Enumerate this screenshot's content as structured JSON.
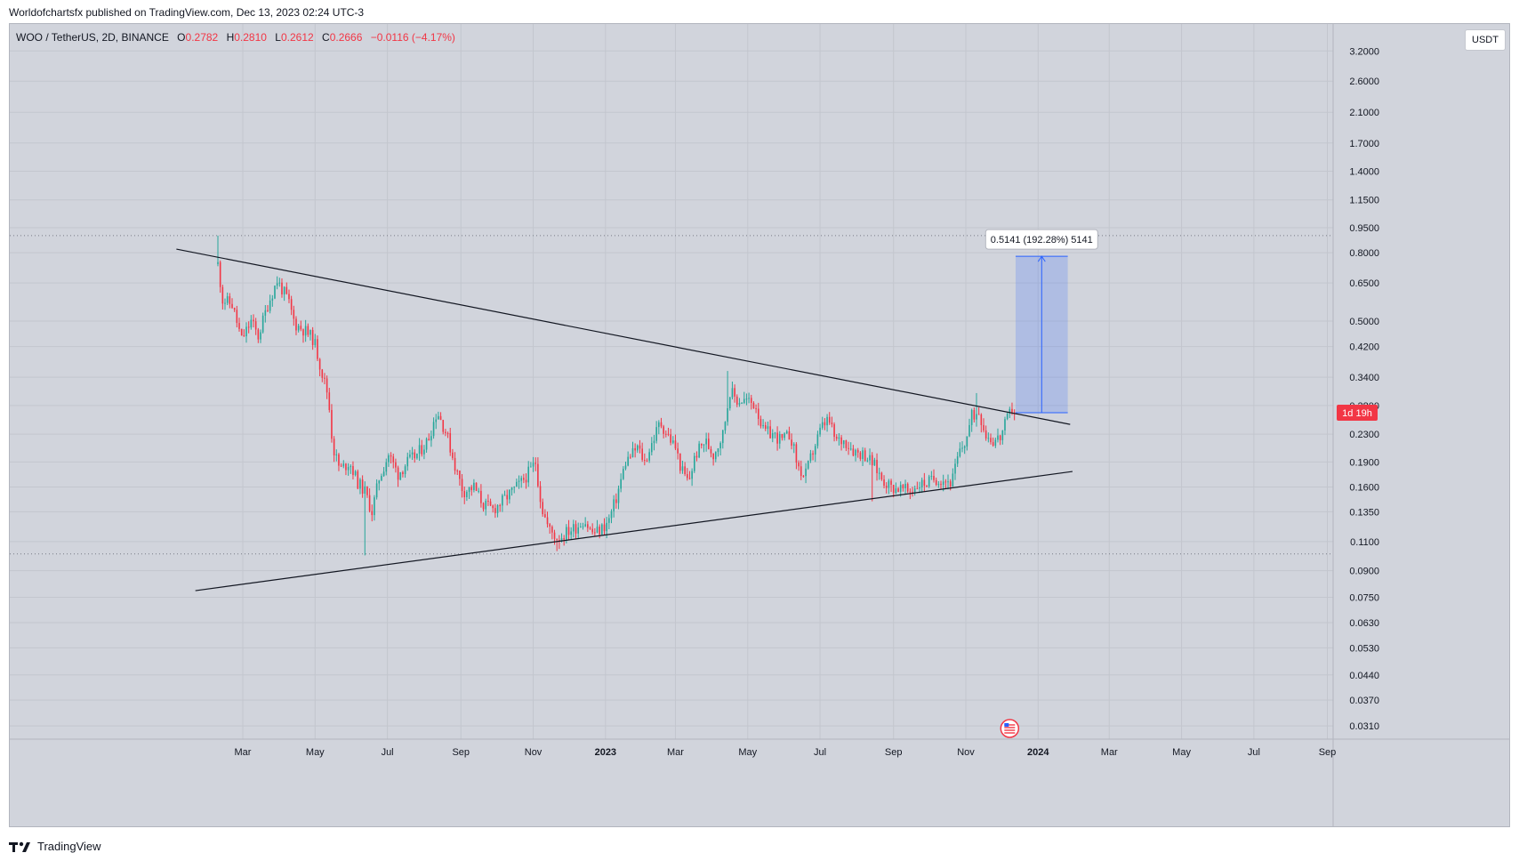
{
  "header": {
    "publisher_line": "Worldofchartsfx published on TradingView.com, Dec 13, 2023 02:24 UTC-3"
  },
  "symbol": {
    "pair": "WOO / TetherUS, 2D, BINANCE",
    "open_label": "O",
    "open": "0.2782",
    "high_label": "H",
    "high": "0.2810",
    "low_label": "L",
    "low": "0.2612",
    "close_label": "C",
    "close": "0.2666",
    "change": "−0.0116 (−4.17%)"
  },
  "currency_button": "USDT",
  "countdown_badge": "1d 19h",
  "measure_label": "0.5141 (192.28%) 5141",
  "footer": {
    "brand": "TradingView"
  },
  "colors": {
    "up": "#26a69a",
    "down": "#f23645",
    "accent": "#2962ff",
    "badge": "#f23645"
  },
  "chart_data": {
    "type": "candlestick",
    "scale": "log",
    "ylim": [
      0.0283,
      3.85
    ],
    "y_ticks": [
      "3.2000",
      "2.6000",
      "2.1000",
      "1.7000",
      "1.4000",
      "1.1500",
      "0.9500",
      "0.8000",
      "0.6500",
      "0.5000",
      "0.4200",
      "0.3400",
      "0.2800",
      "0.2300",
      "0.1900",
      "0.1600",
      "0.1350",
      "0.1100",
      "0.0900",
      "0.0750",
      "0.0630",
      "0.0530",
      "0.0440",
      "0.0370",
      "0.0310"
    ],
    "x_ticks": [
      {
        "label": "Mar",
        "date": "2022-03-01",
        "bold": false
      },
      {
        "label": "May",
        "date": "2022-05-01",
        "bold": false
      },
      {
        "label": "Jul",
        "date": "2022-07-01",
        "bold": false
      },
      {
        "label": "Sep",
        "date": "2022-09-01",
        "bold": false
      },
      {
        "label": "Nov",
        "date": "2022-11-01",
        "bold": false
      },
      {
        "label": "2023",
        "date": "2023-01-01",
        "bold": true
      },
      {
        "label": "Mar",
        "date": "2023-03-01",
        "bold": false
      },
      {
        "label": "May",
        "date": "2023-05-01",
        "bold": false
      },
      {
        "label": "Jul",
        "date": "2023-07-01",
        "bold": false
      },
      {
        "label": "Sep",
        "date": "2023-09-01",
        "bold": false
      },
      {
        "label": "Nov",
        "date": "2023-11-01",
        "bold": false
      },
      {
        "label": "2024",
        "date": "2024-01-01",
        "bold": true
      },
      {
        "label": "Mar",
        "date": "2024-03-01",
        "bold": false
      },
      {
        "label": "May",
        "date": "2024-05-01",
        "bold": false
      },
      {
        "label": "Jul",
        "date": "2024-07-01",
        "bold": false
      },
      {
        "label": "Sep",
        "date": "2024-09-01",
        "bold": false
      }
    ],
    "price_path": [
      [
        "2022-02-08",
        0.74
      ],
      [
        "2022-02-12",
        0.58
      ],
      [
        "2022-02-20",
        0.56
      ],
      [
        "2022-02-28",
        0.44
      ],
      [
        "2022-03-08",
        0.5
      ],
      [
        "2022-03-14",
        0.45
      ],
      [
        "2022-03-22",
        0.56
      ],
      [
        "2022-03-30",
        0.66
      ],
      [
        "2022-04-08",
        0.58
      ],
      [
        "2022-04-14",
        0.49
      ],
      [
        "2022-04-22",
        0.47
      ],
      [
        "2022-04-30",
        0.44
      ],
      [
        "2022-05-06",
        0.36
      ],
      [
        "2022-05-12",
        0.3
      ],
      [
        "2022-05-16",
        0.21
      ],
      [
        "2022-05-22",
        0.18
      ],
      [
        "2022-05-30",
        0.19
      ],
      [
        "2022-06-06",
        0.165
      ],
      [
        "2022-06-12",
        0.155
      ],
      [
        "2022-06-18",
        0.135
      ],
      [
        "2022-06-24",
        0.17
      ],
      [
        "2022-07-02",
        0.2
      ],
      [
        "2022-07-10",
        0.175
      ],
      [
        "2022-07-18",
        0.19
      ],
      [
        "2022-07-26",
        0.2
      ],
      [
        "2022-08-04",
        0.22
      ],
      [
        "2022-08-12",
        0.27
      ],
      [
        "2022-08-20",
        0.23
      ],
      [
        "2022-08-28",
        0.18
      ],
      [
        "2022-09-03",
        0.155
      ],
      [
        "2022-09-12",
        0.16
      ],
      [
        "2022-09-20",
        0.142
      ],
      [
        "2022-09-28",
        0.137
      ],
      [
        "2022-10-06",
        0.145
      ],
      [
        "2022-10-14",
        0.155
      ],
      [
        "2022-10-22",
        0.165
      ],
      [
        "2022-10-30",
        0.18
      ],
      [
        "2022-11-03",
        0.19
      ],
      [
        "2022-11-08",
        0.14
      ],
      [
        "2022-11-14",
        0.12
      ],
      [
        "2022-11-22",
        0.112
      ],
      [
        "2022-11-30",
        0.118
      ],
      [
        "2022-12-08",
        0.122
      ],
      [
        "2022-12-14",
        0.128
      ],
      [
        "2022-12-20",
        0.117
      ],
      [
        "2022-12-26",
        0.118
      ],
      [
        "2023-01-03",
        0.125
      ],
      [
        "2023-01-10",
        0.148
      ],
      [
        "2023-01-18",
        0.19
      ],
      [
        "2023-01-28",
        0.21
      ],
      [
        "2023-02-03",
        0.19
      ],
      [
        "2023-02-10",
        0.22
      ],
      [
        "2023-02-16",
        0.25
      ],
      [
        "2023-02-22",
        0.23
      ],
      [
        "2023-03-01",
        0.21
      ],
      [
        "2023-03-06",
        0.18
      ],
      [
        "2023-03-12",
        0.165
      ],
      [
        "2023-03-18",
        0.2
      ],
      [
        "2023-03-26",
        0.22
      ],
      [
        "2023-04-02",
        0.2
      ],
      [
        "2023-04-10",
        0.23
      ],
      [
        "2023-04-16",
        0.31
      ],
      [
        "2023-04-22",
        0.29
      ],
      [
        "2023-04-30",
        0.29
      ],
      [
        "2023-05-08",
        0.28
      ],
      [
        "2023-05-14",
        0.235
      ],
      [
        "2023-05-22",
        0.23
      ],
      [
        "2023-05-30",
        0.22
      ],
      [
        "2023-06-06",
        0.23
      ],
      [
        "2023-06-12",
        0.185
      ],
      [
        "2023-06-18",
        0.17
      ],
      [
        "2023-06-24",
        0.2
      ],
      [
        "2023-07-02",
        0.24
      ],
      [
        "2023-07-08",
        0.255
      ],
      [
        "2023-07-14",
        0.22
      ],
      [
        "2023-07-22",
        0.22
      ],
      [
        "2023-07-30",
        0.205
      ],
      [
        "2023-08-08",
        0.2
      ],
      [
        "2023-08-16",
        0.185
      ],
      [
        "2023-08-22",
        0.17
      ],
      [
        "2023-08-30",
        0.16
      ],
      [
        "2023-09-08",
        0.158
      ],
      [
        "2023-09-14",
        0.155
      ],
      [
        "2023-09-22",
        0.163
      ],
      [
        "2023-09-30",
        0.165
      ],
      [
        "2023-10-06",
        0.17
      ],
      [
        "2023-10-14",
        0.168
      ],
      [
        "2023-10-20",
        0.165
      ],
      [
        "2023-10-26",
        0.2
      ],
      [
        "2023-11-01",
        0.22
      ],
      [
        "2023-11-06",
        0.26
      ],
      [
        "2023-11-12",
        0.27
      ],
      [
        "2023-11-18",
        0.23
      ],
      [
        "2023-11-24",
        0.22
      ],
      [
        "2023-11-30",
        0.225
      ],
      [
        "2023-12-05",
        0.25
      ],
      [
        "2023-12-10",
        0.275
      ],
      [
        "2023-12-13",
        0.2666
      ]
    ],
    "spikes": [
      {
        "date": "2022-02-08",
        "high": 0.9
      },
      {
        "date": "2022-06-12",
        "low": 0.1
      },
      {
        "date": "2022-11-22",
        "low": 0.103
      },
      {
        "date": "2023-04-14",
        "high": 0.355
      },
      {
        "date": "2023-08-14",
        "low": 0.145
      },
      {
        "date": "2023-11-10",
        "high": 0.305
      }
    ],
    "trendlines": [
      {
        "name": "descending-resistance",
        "from": [
          "2022-01-04",
          0.82
        ],
        "to": [
          "2024-01-28",
          0.246
        ]
      },
      {
        "name": "ascending-support",
        "from": [
          "2022-01-20",
          0.0785
        ],
        "to": [
          "2024-01-30",
          0.178
        ]
      }
    ],
    "horizontal_levels": [
      0.9,
      0.101
    ],
    "measurement": {
      "from_date": "2023-12-13",
      "to_date": "2024-01-26",
      "low": 0.2666,
      "high": 0.7807
    },
    "last_price": 0.2666
  }
}
